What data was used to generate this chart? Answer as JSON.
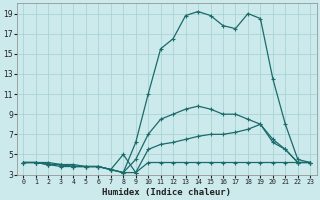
{
  "title": "",
  "xlabel": "Humidex (Indice chaleur)",
  "bg_color": "#cce9eb",
  "grid_color": "#aad4d6",
  "line_color": "#1a6b6b",
  "xlim": [
    -0.5,
    23.5
  ],
  "ylim": [
    3,
    20
  ],
  "xticks": [
    0,
    1,
    2,
    3,
    4,
    5,
    6,
    7,
    8,
    9,
    10,
    11,
    12,
    13,
    14,
    15,
    16,
    17,
    18,
    19,
    20,
    21,
    22,
    23
  ],
  "yticks": [
    3,
    5,
    7,
    9,
    11,
    13,
    15,
    17,
    19
  ],
  "series": [
    {
      "x": [
        0,
        1,
        2,
        3,
        4,
        5,
        6,
        7,
        8,
        9,
        10,
        11,
        12,
        13,
        14,
        15,
        16,
        17,
        18,
        19,
        20,
        21,
        22,
        23
      ],
      "y": [
        4.2,
        4.2,
        4.2,
        4.0,
        4.0,
        3.8,
        3.8,
        3.5,
        3.2,
        3.2,
        4.2,
        4.2,
        4.2,
        4.2,
        4.2,
        4.2,
        4.2,
        4.2,
        4.2,
        4.2,
        4.2,
        4.2,
        4.2,
        4.2
      ]
    },
    {
      "x": [
        0,
        1,
        2,
        3,
        4,
        5,
        6,
        7,
        8,
        9,
        10,
        11,
        12,
        13,
        14,
        15,
        16,
        17,
        18,
        19,
        20,
        21,
        22,
        23
      ],
      "y": [
        4.2,
        4.2,
        4.0,
        4.0,
        3.8,
        3.8,
        3.8,
        3.5,
        5.0,
        3.2,
        5.5,
        6.0,
        6.2,
        6.5,
        6.8,
        7.0,
        7.0,
        7.2,
        7.5,
        8.0,
        6.2,
        5.5,
        4.2,
        4.2
      ]
    },
    {
      "x": [
        0,
        1,
        2,
        3,
        4,
        5,
        6,
        7,
        8,
        9,
        10,
        11,
        12,
        13,
        14,
        15,
        16,
        17,
        18,
        19,
        20,
        21,
        22,
        23
      ],
      "y": [
        4.2,
        4.2,
        4.0,
        4.0,
        3.8,
        3.8,
        3.8,
        3.5,
        3.2,
        4.5,
        7.0,
        8.5,
        9.0,
        9.5,
        9.8,
        9.5,
        9.0,
        9.0,
        8.5,
        8.0,
        6.5,
        5.5,
        4.2,
        4.2
      ]
    },
    {
      "x": [
        0,
        1,
        2,
        3,
        4,
        5,
        6,
        7,
        8,
        9,
        10,
        11,
        12,
        13,
        14,
        15,
        16,
        17,
        18,
        19,
        20,
        21,
        22,
        23
      ],
      "y": [
        4.2,
        4.2,
        4.0,
        3.8,
        3.8,
        3.8,
        3.8,
        3.5,
        3.2,
        6.2,
        11.0,
        15.5,
        16.5,
        18.8,
        19.2,
        18.8,
        17.8,
        17.5,
        19.0,
        18.5,
        12.5,
        8.0,
        4.5,
        4.2
      ]
    }
  ]
}
